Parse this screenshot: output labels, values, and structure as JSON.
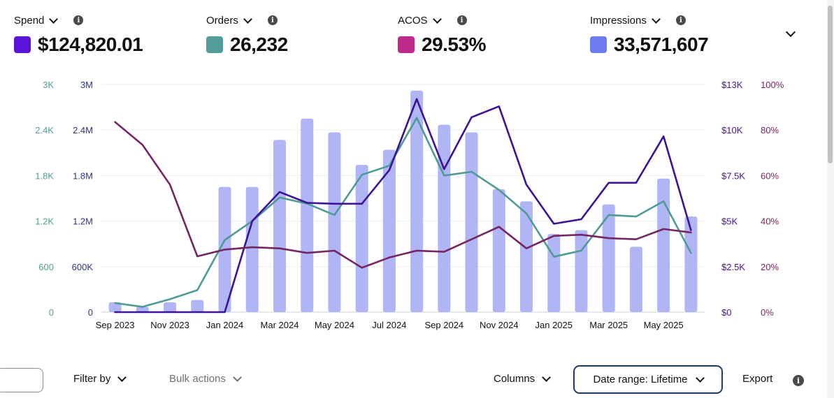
{
  "metrics": [
    {
      "label": "Spend",
      "value": "$124,820.01",
      "color": "#5b14d7"
    },
    {
      "label": "Orders",
      "value": "26,232",
      "color": "#519d98"
    },
    {
      "label": "ACOS",
      "value": "29.53%",
      "color": "#c0288c"
    },
    {
      "label": "Impressions",
      "value": "33,571,607",
      "color": "#6c7cf0"
    }
  ],
  "toolbar": {
    "filter_label": "Filter by",
    "bulk_label": "Bulk actions",
    "columns_label": "Columns",
    "date_range_label": "Date range: Lifetime",
    "export_label": "Export"
  },
  "chart_data": {
    "type": "bar",
    "categories": [
      "Sep 2023",
      "Oct 2023",
      "Nov 2023",
      "Dec 2023",
      "Jan 2024",
      "Feb 2024",
      "Mar 2024",
      "Apr 2024",
      "May 2024",
      "Jun 2024",
      "Jul 2024",
      "Aug 2024",
      "Sep 2024",
      "Oct 2024",
      "Nov 2024",
      "Dec 2024",
      "Jan 2025",
      "Feb 2025",
      "Mar 2025",
      "Apr 2025",
      "May 2025",
      "Jun 2025"
    ],
    "tick_labels": [
      "Sep 2023",
      "Nov 2023",
      "Jan 2024",
      "Mar 2024",
      "May 2024",
      "Jul 2024",
      "Sep 2024",
      "Nov 2024",
      "Jan 2025",
      "Mar 2025",
      "May 2025"
    ],
    "grid": true,
    "axes": {
      "orders": {
        "position": "left-outer",
        "ticks": [
          "0",
          "600",
          "1.2K",
          "1.8K",
          "2.4K",
          "3K"
        ],
        "min": 0,
        "max": 3000,
        "color": "#519d98"
      },
      "impressions": {
        "position": "left-inner",
        "ticks": [
          "0",
          "600K",
          "1.2M",
          "1.8M",
          "2.4M",
          "3M"
        ],
        "min": 0,
        "max": 3000000,
        "color": "#2a3585"
      },
      "spend": {
        "position": "right-inner",
        "ticks": [
          "$0",
          "$2.5K",
          "$5K",
          "$7.5K",
          "$10K",
          "$13K"
        ],
        "min": 0,
        "max": 12500,
        "color": "#4a1290"
      },
      "acos": {
        "position": "right-outer",
        "ticks": [
          "0%",
          "20%",
          "40%",
          "60%",
          "80%",
          "100%"
        ],
        "min": 0,
        "max": 100,
        "color": "#7a2460"
      }
    },
    "series": [
      {
        "key": "impressions",
        "kind": "bar",
        "color": "#b0b6f5",
        "values": [
          130000,
          70000,
          130000,
          160000,
          1650000,
          1650000,
          2270000,
          2550000,
          2370000,
          1940000,
          2140000,
          2920000,
          2470000,
          2370000,
          1620000,
          1460000,
          1030000,
          1080000,
          1420000,
          860000,
          1760000,
          1260000
        ]
      },
      {
        "key": "orders",
        "kind": "line",
        "color": "#4f9a96",
        "values": [
          120,
          70,
          170,
          290,
          950,
          1200,
          1510,
          1430,
          1280,
          1810,
          1930,
          2560,
          1800,
          1850,
          1610,
          1300,
          730,
          810,
          1280,
          1260,
          1460,
          780
        ]
      },
      {
        "key": "spend",
        "kind": "line",
        "color": "#3e1298",
        "values": [
          0,
          0,
          0,
          0,
          0,
          5000,
          6600,
          6000,
          5950,
          5950,
          7800,
          11700,
          7850,
          10700,
          11300,
          7000,
          4850,
          5100,
          7100,
          7100,
          9650,
          4500
        ]
      },
      {
        "key": "acos",
        "kind": "line",
        "color": "#762563",
        "values": [
          83.5,
          73.5,
          56,
          24.5,
          27.5,
          28.5,
          28,
          26,
          27,
          19.5,
          24,
          27,
          26.5,
          32,
          37.5,
          28,
          33.5,
          34,
          32.5,
          32,
          36.5,
          35
        ]
      }
    ]
  }
}
